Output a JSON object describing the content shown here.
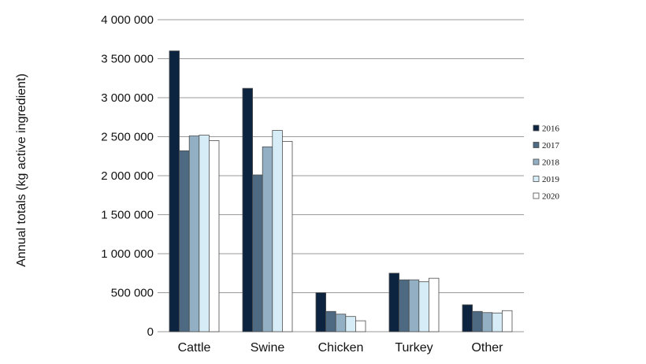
{
  "chart_data": {
    "type": "bar",
    "ylabel": "Annual totals (kg active ingredient)",
    "xlabel": "",
    "categories": [
      "Cattle",
      "Swine",
      "Chicken",
      "Turkey",
      "Other"
    ],
    "ylim": [
      0,
      4000000
    ],
    "yticks": [
      0,
      500000,
      1000000,
      1500000,
      2000000,
      2500000,
      3000000,
      3500000,
      4000000
    ],
    "ytick_labels": [
      "0",
      "500 000",
      "1 000 000",
      "1 500 000",
      "2 000 000",
      "2 500 000",
      "3 000 000",
      "3 500 000",
      "4 000 000"
    ],
    "grid": true,
    "legend_position": "right",
    "series": [
      {
        "name": "2016",
        "color": "#0d2440",
        "values": [
          3600000,
          3120000,
          500000,
          750000,
          345000
        ]
      },
      {
        "name": "2017",
        "color": "#4d6a82",
        "values": [
          2320000,
          2010000,
          260000,
          665000,
          260000
        ]
      },
      {
        "name": "2018",
        "color": "#93afc4",
        "values": [
          2510000,
          2370000,
          225000,
          665000,
          245000
        ]
      },
      {
        "name": "2019",
        "color": "#d6ecf6",
        "values": [
          2520000,
          2580000,
          195000,
          640000,
          240000
        ]
      },
      {
        "name": "2020",
        "color": "#ffffff",
        "values": [
          2450000,
          2440000,
          140000,
          685000,
          270000
        ]
      }
    ]
  }
}
